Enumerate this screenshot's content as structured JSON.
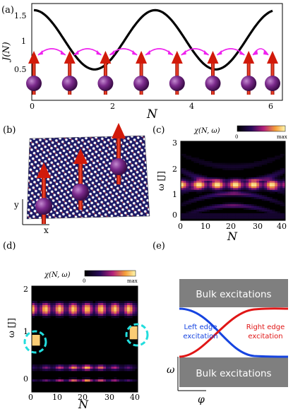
{
  "panels": {
    "a": {
      "label": "(a)",
      "xlabel": "N",
      "ylabel": "J(N)",
      "xticks": [
        "0",
        "2",
        "4",
        "6"
      ],
      "yticks": [
        "0.5",
        "1",
        "1.5"
      ]
    },
    "b": {
      "label": "(b)",
      "x_axis": "x",
      "y_axis": "y"
    },
    "c": {
      "label": "(c)",
      "title": "χ(N, ω)",
      "cbar_min": "0",
      "cbar_max": "max",
      "xlabel": "N",
      "ylabel": "ω [J]",
      "xticks": [
        "0",
        "10",
        "20",
        "30",
        "40"
      ],
      "yticks": [
        "0",
        "1",
        "2",
        "3"
      ]
    },
    "d": {
      "label": "(d)",
      "title": "χ(N, ω)",
      "cbar_min": "0",
      "cbar_max": "max",
      "xlabel": "N",
      "ylabel": "ω [J]",
      "xticks": [
        "0",
        "10",
        "20",
        "30",
        "40"
      ],
      "yticks": [
        "0",
        "1",
        "2"
      ]
    },
    "e": {
      "label": "(e)",
      "bulk_top": "Bulk excitations",
      "bulk_bottom": "Bulk excitations",
      "left_edge": "Left edge\nexcitation",
      "right_edge": "Right edge\nexcitation",
      "xlabel": "φ",
      "ylabel": "ω"
    }
  },
  "chart_data": [
    {
      "type": "line",
      "title": "",
      "xlabel": "N",
      "ylabel": "J(N)",
      "xlim": [
        0,
        6.1
      ],
      "ylim": [
        0,
        1.6
      ],
      "series": [
        {
          "x": [
            0,
            0.5,
            1,
            1.5,
            2,
            2.5,
            3,
            3.5,
            4,
            4.5,
            5,
            5.5,
            6
          ],
          "values": [
            1.47,
            1.21,
            0.78,
            0.53,
            0.76,
            1.2,
            1.49,
            1.24,
            0.8,
            0.52,
            0.74,
            1.18,
            1.46
          ]
        }
      ],
      "spins_at": [
        0,
        0.9,
        1.8,
        2.7,
        3.6,
        4.5,
        5.4,
        6.0
      ]
    },
    {
      "type": "heatmap",
      "title": "χ(N, ω)",
      "xlabel": "N",
      "ylabel": "ω [J]",
      "xlim": [
        0,
        40
      ],
      "ylim": [
        0,
        3
      ]
    },
    {
      "type": "heatmap",
      "title": "χ(N, ω)",
      "xlabel": "N",
      "ylabel": "ω [J]",
      "xlim": [
        0,
        40
      ],
      "ylim": [
        0,
        2
      ]
    }
  ],
  "colors": {
    "spin_arrow": "#d11a0a",
    "atom": "#7b2a8c",
    "hop_arrow": "#ee22ee",
    "curve": "#000000",
    "edge_circle": "#22dddd",
    "left_curve": "#1644e0",
    "right_curve": "#e01616",
    "bulk_box": "#7f7f7f"
  }
}
